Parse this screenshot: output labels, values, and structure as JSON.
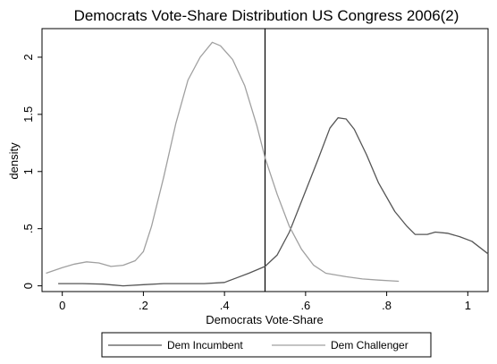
{
  "chart_data": {
    "type": "line",
    "title": "Democrats Vote-Share Distribution US Congress 2006(2)",
    "xlabel": "Democrats Vote-Share",
    "ylabel": "density",
    "xlim": [
      -0.05,
      1.05
    ],
    "ylim": [
      -0.05,
      2.25
    ],
    "x_ticks": [
      0,
      0.2,
      0.4,
      0.6,
      0.8,
      1
    ],
    "x_tick_labels": [
      "0",
      ".2",
      ".4",
      ".6",
      ".8",
      "1"
    ],
    "y_ticks": [
      0,
      0.5,
      1,
      1.5,
      2
    ],
    "y_tick_labels": [
      "0",
      ".5",
      "1",
      "1.5",
      "2"
    ],
    "grid": false,
    "reference_line_x": 0.5,
    "legend_position": "bottom",
    "series": [
      {
        "name": "Dem Incumbent",
        "color": "#555555",
        "points": [
          [
            -0.01,
            0.02
          ],
          [
            0.05,
            0.02
          ],
          [
            0.1,
            0.015
          ],
          [
            0.15,
            0.0
          ],
          [
            0.2,
            0.01
          ],
          [
            0.25,
            0.02
          ],
          [
            0.3,
            0.02
          ],
          [
            0.35,
            0.02
          ],
          [
            0.4,
            0.03
          ],
          [
            0.43,
            0.07
          ],
          [
            0.46,
            0.11
          ],
          [
            0.5,
            0.17
          ],
          [
            0.53,
            0.27
          ],
          [
            0.56,
            0.47
          ],
          [
            0.6,
            0.83
          ],
          [
            0.63,
            1.1
          ],
          [
            0.66,
            1.38
          ],
          [
            0.68,
            1.47
          ],
          [
            0.7,
            1.46
          ],
          [
            0.72,
            1.37
          ],
          [
            0.75,
            1.15
          ],
          [
            0.78,
            0.9
          ],
          [
            0.82,
            0.65
          ],
          [
            0.85,
            0.52
          ],
          [
            0.87,
            0.45
          ],
          [
            0.9,
            0.45
          ],
          [
            0.92,
            0.47
          ],
          [
            0.95,
            0.46
          ],
          [
            0.98,
            0.43
          ],
          [
            1.01,
            0.39
          ],
          [
            1.05,
            0.28
          ]
        ]
      },
      {
        "name": "Dem Challenger",
        "color": "#a0a0a0",
        "points": [
          [
            -0.04,
            0.11
          ],
          [
            0.0,
            0.16
          ],
          [
            0.03,
            0.19
          ],
          [
            0.06,
            0.21
          ],
          [
            0.09,
            0.2
          ],
          [
            0.12,
            0.17
          ],
          [
            0.15,
            0.18
          ],
          [
            0.18,
            0.22
          ],
          [
            0.2,
            0.3
          ],
          [
            0.22,
            0.52
          ],
          [
            0.25,
            0.95
          ],
          [
            0.28,
            1.42
          ],
          [
            0.31,
            1.8
          ],
          [
            0.34,
            2.0
          ],
          [
            0.37,
            2.13
          ],
          [
            0.39,
            2.1
          ],
          [
            0.42,
            1.98
          ],
          [
            0.45,
            1.75
          ],
          [
            0.48,
            1.4
          ],
          [
            0.5,
            1.12
          ],
          [
            0.53,
            0.8
          ],
          [
            0.56,
            0.52
          ],
          [
            0.59,
            0.32
          ],
          [
            0.62,
            0.18
          ],
          [
            0.65,
            0.11
          ],
          [
            0.7,
            0.08
          ],
          [
            0.74,
            0.06
          ],
          [
            0.78,
            0.05
          ],
          [
            0.83,
            0.04
          ]
        ]
      }
    ]
  }
}
